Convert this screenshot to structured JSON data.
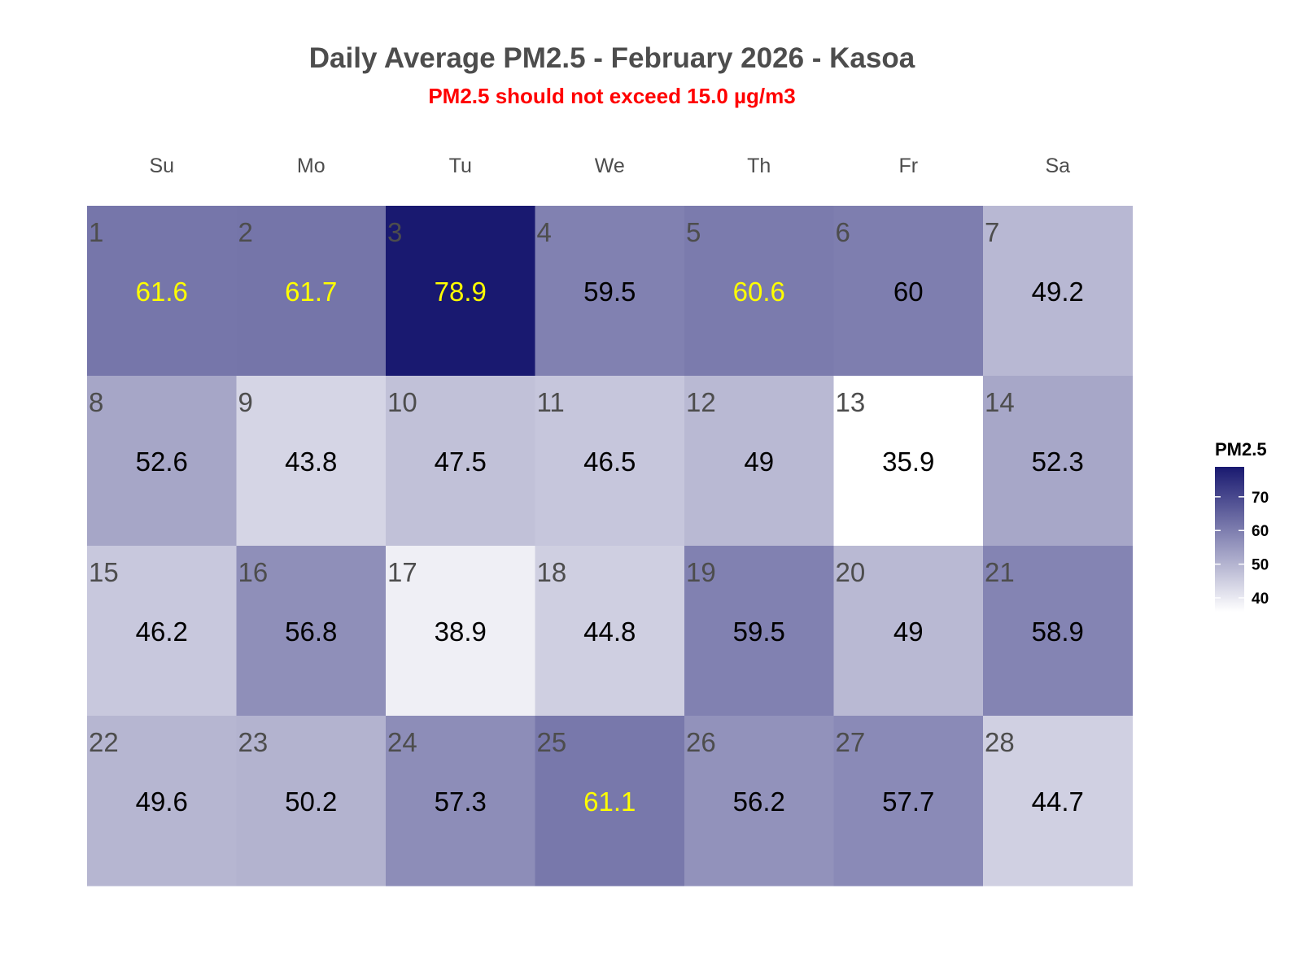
{
  "title": "Daily Average PM2.5 - February 2026 - Kasoa",
  "subtitle": "PM2.5 should not exceed 15.0 µg/m3",
  "colors": {
    "low": "#ffffff",
    "high": "#191970",
    "threshold_text": "#ffff00",
    "normal_text": "#000000",
    "subtitle": "#ff0000"
  },
  "chart_data": {
    "type": "heatmap",
    "title": "Daily Average PM2.5 - February 2026 - Kasoa",
    "subtitle": "PM2.5 should not exceed 15.0 µg/m3",
    "weekdays": [
      "Su",
      "Mo",
      "Tu",
      "We",
      "Th",
      "Fr",
      "Sa"
    ],
    "highlight_above": 60,
    "days": [
      {
        "day": 1,
        "label": "1",
        "value": 61.6,
        "text": "61.6"
      },
      {
        "day": 2,
        "label": "2",
        "value": 61.7,
        "text": "61.7"
      },
      {
        "day": 3,
        "label": "3",
        "value": 78.9,
        "text": "78.9"
      },
      {
        "day": 4,
        "label": "4",
        "value": 59.5,
        "text": "59.5"
      },
      {
        "day": 5,
        "label": "5",
        "value": 60.6,
        "text": "60.6"
      },
      {
        "day": 6,
        "label": "6",
        "value": 60,
        "text": "60"
      },
      {
        "day": 7,
        "label": "7",
        "value": 49.2,
        "text": "49.2"
      },
      {
        "day": 8,
        "label": "8",
        "value": 52.6,
        "text": "52.6"
      },
      {
        "day": 9,
        "label": "9",
        "value": 43.8,
        "text": "43.8"
      },
      {
        "day": 10,
        "label": "10",
        "value": 47.5,
        "text": "47.5"
      },
      {
        "day": 11,
        "label": "11",
        "value": 46.5,
        "text": "46.5"
      },
      {
        "day": 12,
        "label": "12",
        "value": 49,
        "text": "49"
      },
      {
        "day": 13,
        "label": "13",
        "value": 35.9,
        "text": "35.9"
      },
      {
        "day": 14,
        "label": "14",
        "value": 52.3,
        "text": "52.3"
      },
      {
        "day": 15,
        "label": "15",
        "value": 46.2,
        "text": "46.2"
      },
      {
        "day": 16,
        "label": "16",
        "value": 56.8,
        "text": "56.8"
      },
      {
        "day": 17,
        "label": "17",
        "value": 38.9,
        "text": "38.9"
      },
      {
        "day": 18,
        "label": "18",
        "value": 44.8,
        "text": "44.8"
      },
      {
        "day": 19,
        "label": "19",
        "value": 59.5,
        "text": "59.5"
      },
      {
        "day": 20,
        "label": "20",
        "value": 49,
        "text": "49"
      },
      {
        "day": 21,
        "label": "21",
        "value": 58.9,
        "text": "58.9"
      },
      {
        "day": 22,
        "label": "22",
        "value": 49.6,
        "text": "49.6"
      },
      {
        "day": 23,
        "label": "23",
        "value": 50.2,
        "text": "50.2"
      },
      {
        "day": 24,
        "label": "24",
        "value": 57.3,
        "text": "57.3"
      },
      {
        "day": 25,
        "label": "25",
        "value": 61.1,
        "text": "61.1"
      },
      {
        "day": 26,
        "label": "26",
        "value": 56.2,
        "text": "56.2"
      },
      {
        "day": 27,
        "label": "27",
        "value": 57.7,
        "text": "57.7"
      },
      {
        "day": 28,
        "label": "28",
        "value": 44.7,
        "text": "44.7"
      }
    ],
    "first_weekday_index": 0,
    "legend": {
      "title": "PM2.5",
      "ticks": [
        40,
        50,
        60,
        70
      ],
      "tick_labels": [
        "40",
        "50",
        "60",
        "70"
      ],
      "range": [
        35.9,
        78.9
      ],
      "placement": "right"
    }
  }
}
